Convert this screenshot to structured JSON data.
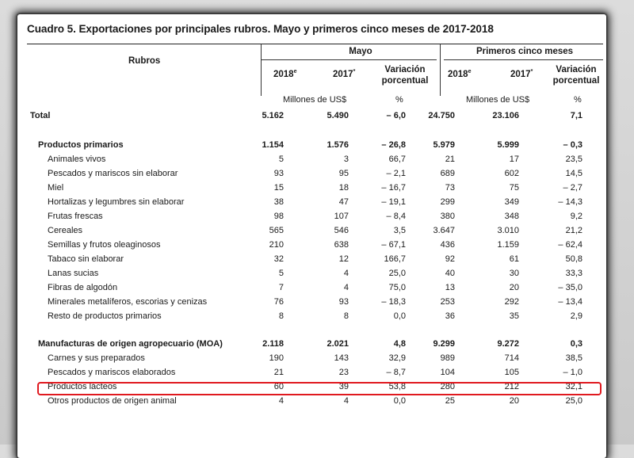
{
  "title": "Cuadro 5. Exportaciones por principales rubros. Mayo y primeros cinco meses de 2017-2018",
  "header": {
    "rubros": "Rubros",
    "group_mayo": "Mayo",
    "group_primeros": "Primeros cinco meses",
    "col_2018": "2018",
    "col_2018_sup": "e",
    "col_2017": "2017",
    "col_2017_sup": "*",
    "variacion_line1": "Variación",
    "variacion_line2": "porcentual",
    "unit_millones": "Millones de US$",
    "unit_pct": "%"
  },
  "rows": [
    {
      "label": "Total",
      "m2018": "5.162",
      "m2017": "5.490",
      "mvar": "– 6,0",
      "p2018": "24.750",
      "p2017": "23.106",
      "pvar": "7,1",
      "style": "total"
    },
    {
      "label": "Productos primarios",
      "m2018": "1.154",
      "m2017": "1.576",
      "mvar": "– 26,8",
      "p2018": "5.979",
      "p2017": "5.999",
      "pvar": "– 0,3",
      "style": "section"
    },
    {
      "label": "Animales vivos",
      "m2018": "5",
      "m2017": "3",
      "mvar": "66,7",
      "p2018": "21",
      "p2017": "17",
      "pvar": "23,5",
      "style": "item"
    },
    {
      "label": "Pescados y mariscos sin elaborar",
      "m2018": "93",
      "m2017": "95",
      "mvar": "– 2,1",
      "p2018": "689",
      "p2017": "602",
      "pvar": "14,5",
      "style": "item"
    },
    {
      "label": "Miel",
      "m2018": "15",
      "m2017": "18",
      "mvar": "– 16,7",
      "p2018": "73",
      "p2017": "75",
      "pvar": "– 2,7",
      "style": "item"
    },
    {
      "label": "Hortalizas y legumbres sin elaborar",
      "m2018": "38",
      "m2017": "47",
      "mvar": "– 19,1",
      "p2018": "299",
      "p2017": "349",
      "pvar": "– 14,3",
      "style": "item"
    },
    {
      "label": "Frutas frescas",
      "m2018": "98",
      "m2017": "107",
      "mvar": "– 8,4",
      "p2018": "380",
      "p2017": "348",
      "pvar": "9,2",
      "style": "item"
    },
    {
      "label": "Cereales",
      "m2018": "565",
      "m2017": "546",
      "mvar": "3,5",
      "p2018": "3.647",
      "p2017": "3.010",
      "pvar": "21,2",
      "style": "item"
    },
    {
      "label": "Semillas y frutos oleaginosos",
      "m2018": "210",
      "m2017": "638",
      "mvar": "– 67,1",
      "p2018": "436",
      "p2017": "1.159",
      "pvar": "– 62,4",
      "style": "item"
    },
    {
      "label": "Tabaco sin elaborar",
      "m2018": "32",
      "m2017": "12",
      "mvar": "166,7",
      "p2018": "92",
      "p2017": "61",
      "pvar": "50,8",
      "style": "item"
    },
    {
      "label": "Lanas sucias",
      "m2018": "5",
      "m2017": "4",
      "mvar": "25,0",
      "p2018": "40",
      "p2017": "30",
      "pvar": "33,3",
      "style": "item"
    },
    {
      "label": "Fibras de algodón",
      "m2018": "7",
      "m2017": "4",
      "mvar": "75,0",
      "p2018": "13",
      "p2017": "20",
      "pvar": "– 35,0",
      "style": "item"
    },
    {
      "label": "Minerales metalíferos, escorias y cenizas",
      "m2018": "76",
      "m2017": "93",
      "mvar": "– 18,3",
      "p2018": "253",
      "p2017": "292",
      "pvar": "– 13,4",
      "style": "item"
    },
    {
      "label": "Resto de productos primarios",
      "m2018": "8",
      "m2017": "8",
      "mvar": "0,0",
      "p2018": "36",
      "p2017": "35",
      "pvar": "2,9",
      "style": "item"
    },
    {
      "label": "Manufacturas de origen agropecuario (MOA)",
      "m2018": "2.118",
      "m2017": "2.021",
      "mvar": "4,8",
      "p2018": "9.299",
      "p2017": "9.272",
      "pvar": "0,3",
      "style": "section"
    },
    {
      "label": "Carnes y sus preparados",
      "m2018": "190",
      "m2017": "143",
      "mvar": "32,9",
      "p2018": "989",
      "p2017": "714",
      "pvar": "38,5",
      "style": "item"
    },
    {
      "label": "Pescados y mariscos elaborados",
      "m2018": "21",
      "m2017": "23",
      "mvar": "– 8,7",
      "p2018": "104",
      "p2017": "105",
      "pvar": "– 1,0",
      "style": "item"
    },
    {
      "label": "Productos lácteos",
      "m2018": "60",
      "m2017": "39",
      "mvar": "53,8",
      "p2018": "280",
      "p2017": "212",
      "pvar": "32,1",
      "style": "item",
      "highlighted": true
    },
    {
      "label": "Otros productos de origen animal",
      "m2018": "4",
      "m2017": "4",
      "mvar": "0,0",
      "p2018": "25",
      "p2017": "20",
      "pvar": "25,0",
      "style": "item"
    }
  ],
  "colors": {
    "highlight_border": "#e0191f",
    "text": "#1a1a1a"
  }
}
